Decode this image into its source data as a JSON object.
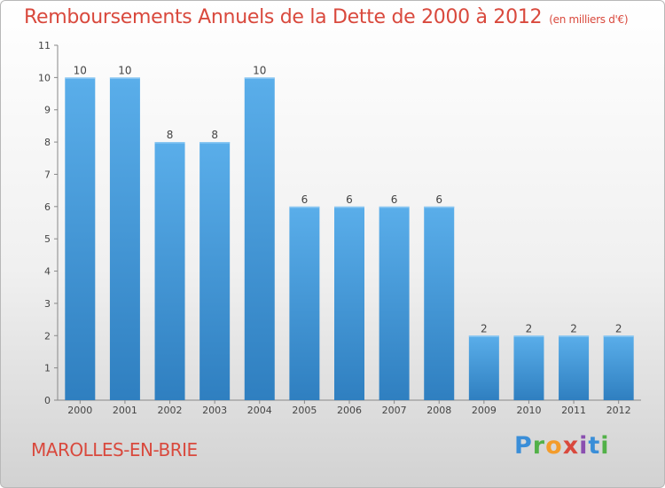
{
  "title": "Remboursements Annuels de la Dette de 2000 à 2012",
  "subtitle": "(en milliers d'€)",
  "commune": "MAROLLES-EN-BRIE",
  "logo": [
    "P",
    "r",
    "o",
    "x",
    "i",
    "t",
    "i"
  ],
  "colors": {
    "bar": "#4a9fe2",
    "bar_dark": "#2f7fc0",
    "title": "#d9493d"
  },
  "chart_data": {
    "type": "bar",
    "title": "Remboursements Annuels de la Dette de 2000 à 2012",
    "categories": [
      "2000",
      "2001",
      "2002",
      "2003",
      "2004",
      "2005",
      "2006",
      "2007",
      "2008",
      "2009",
      "2010",
      "2011",
      "2012"
    ],
    "values": [
      10,
      10,
      8,
      8,
      10,
      6,
      6,
      6,
      6,
      2,
      2,
      2,
      2
    ],
    "ylim": [
      0,
      11
    ],
    "yticks": [
      0,
      1,
      2,
      3,
      4,
      5,
      6,
      7,
      8,
      9,
      10,
      11
    ],
    "grid": false,
    "xlabel": "",
    "ylabel": ""
  }
}
